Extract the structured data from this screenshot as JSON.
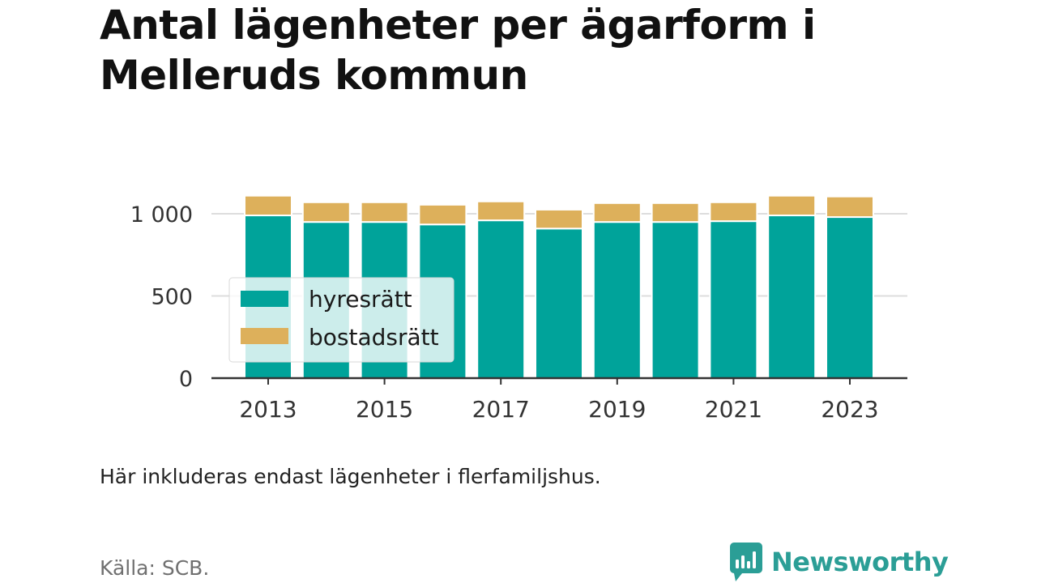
{
  "title": "Antal lägenheter per ägarform i Melleruds kommun",
  "note": "Här inkluderas endast lägenheter i flerfamiljshus.",
  "source": "Källa: SCB.",
  "brand": {
    "name": "Newsworthy",
    "icon": "newsworthy-logo-icon",
    "color": "#2b9e96"
  },
  "colors": {
    "hyresratt": "#00a39a",
    "bostadsratt": "#ddb05b",
    "axis": "#333333",
    "grid": "#dddddd"
  },
  "chart_data": {
    "type": "bar",
    "stacked": true,
    "x": [
      2013,
      2014,
      2015,
      2016,
      2017,
      2018,
      2019,
      2020,
      2021,
      2022,
      2023
    ],
    "x_tick_labels": [
      "2013",
      "2015",
      "2017",
      "2019",
      "2021",
      "2023"
    ],
    "y_ticks": [
      0,
      500,
      1000
    ],
    "y_tick_labels": [
      "0",
      "500",
      "1 000"
    ],
    "ylim": [
      0,
      1120
    ],
    "grid": "horizontal",
    "legend_position": "left",
    "series": [
      {
        "name": "hyresrätt",
        "color": "#00a39a",
        "values": [
          990,
          950,
          950,
          935,
          960,
          910,
          950,
          950,
          955,
          990,
          980
        ]
      },
      {
        "name": "bostadsrätt",
        "color": "#ddb05b",
        "values": [
          120,
          120,
          120,
          120,
          115,
          115,
          115,
          115,
          115,
          120,
          125
        ]
      }
    ]
  }
}
